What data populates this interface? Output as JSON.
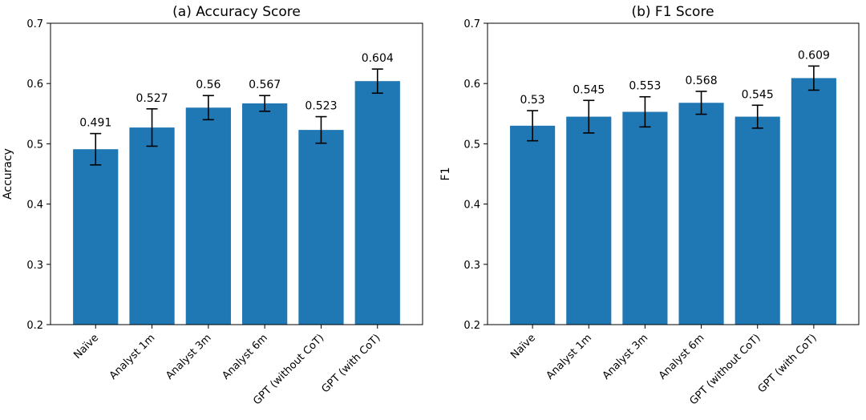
{
  "chart_data": [
    {
      "type": "bar",
      "title": "(a) Accuracy Score",
      "xlabel": "",
      "ylabel": "Accuracy",
      "ylim": [
        0.2,
        0.7
      ],
      "yticks": [
        "0.2",
        "0.3",
        "0.4",
        "0.5",
        "0.6",
        "0.7"
      ],
      "categories": [
        "Naïve",
        "Analyst 1m",
        "Analyst 3m",
        "Analyst 6m",
        "GPT (without CoT)",
        "GPT (with CoT)"
      ],
      "values": [
        0.491,
        0.527,
        0.56,
        0.567,
        0.523,
        0.604
      ],
      "value_labels": [
        "0.491",
        "0.527",
        "0.56",
        "0.567",
        "0.523",
        "0.604"
      ],
      "errors": [
        0.026,
        0.031,
        0.02,
        0.013,
        0.022,
        0.02
      ],
      "bar_color": "#1f77b4",
      "grid": false
    },
    {
      "type": "bar",
      "title": "(b) F1 Score",
      "xlabel": "",
      "ylabel": "F1",
      "ylim": [
        0.2,
        0.7
      ],
      "yticks": [
        "0.2",
        "0.3",
        "0.4",
        "0.5",
        "0.6",
        "0.7"
      ],
      "categories": [
        "Naïve",
        "Analyst 1m",
        "Analyst 3m",
        "Analyst 6m",
        "GPT (without CoT)",
        "GPT (with CoT)"
      ],
      "values": [
        0.53,
        0.545,
        0.553,
        0.568,
        0.545,
        0.609
      ],
      "value_labels": [
        "0.53",
        "0.545",
        "0.553",
        "0.568",
        "0.545",
        "0.609"
      ],
      "errors": [
        0.025,
        0.027,
        0.025,
        0.019,
        0.019,
        0.02
      ],
      "bar_color": "#1f77b4",
      "grid": false
    }
  ]
}
